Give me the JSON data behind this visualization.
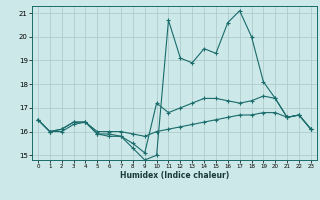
{
  "xlabel": "Humidex (Indice chaleur)",
  "xlim": [
    -0.5,
    23.5
  ],
  "ylim": [
    14.8,
    21.3
  ],
  "yticks": [
    15,
    16,
    17,
    18,
    19,
    20,
    21
  ],
  "xticks": [
    0,
    1,
    2,
    3,
    4,
    5,
    6,
    7,
    8,
    9,
    10,
    11,
    12,
    13,
    14,
    15,
    16,
    17,
    18,
    19,
    20,
    21,
    22,
    23
  ],
  "bg_color": "#cce8e8",
  "grid_color": "#b0cccc",
  "line_color": "#1a6b6b",
  "line1": [
    16.5,
    16.0,
    16.0,
    16.3,
    16.4,
    15.9,
    15.8,
    15.8,
    15.3,
    14.8,
    15.0,
    20.7,
    19.1,
    18.9,
    19.5,
    19.3,
    20.6,
    21.1,
    20.0,
    18.1,
    17.4,
    16.6,
    16.7,
    16.1
  ],
  "line2": [
    16.5,
    16.0,
    16.1,
    16.4,
    16.4,
    15.9,
    15.9,
    15.8,
    15.5,
    15.1,
    17.2,
    16.8,
    17.0,
    17.2,
    17.4,
    17.4,
    17.3,
    17.2,
    17.3,
    17.5,
    17.4,
    16.6,
    16.7,
    16.1
  ],
  "line3": [
    16.5,
    16.0,
    16.1,
    16.4,
    16.4,
    16.0,
    16.0,
    16.0,
    15.9,
    15.8,
    16.0,
    16.1,
    16.2,
    16.3,
    16.4,
    16.5,
    16.6,
    16.7,
    16.7,
    16.8,
    16.8,
    16.6,
    16.7,
    16.1
  ]
}
